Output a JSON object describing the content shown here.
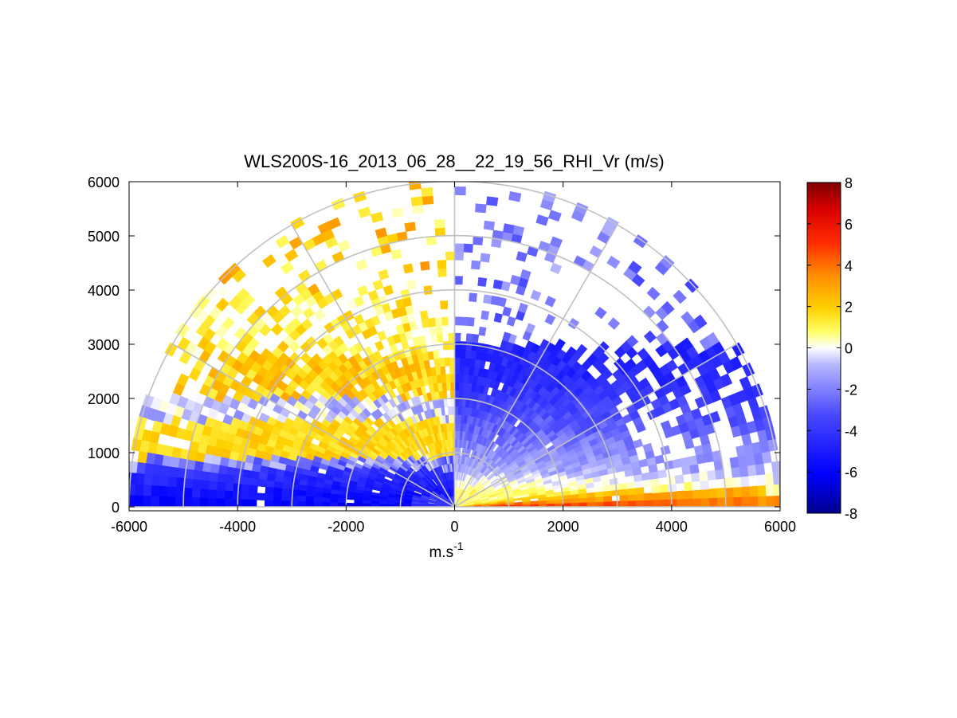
{
  "chart_data": {
    "type": "heatmap",
    "subtype": "polar-rhi-scan",
    "title": "WLS200S-16_2013_06_28__22_19_56_RHI_Vr (m/s)",
    "xlabel": "m.s",
    "xlabel_superscript": "-1",
    "ylabel": "",
    "xlim": [
      -6000,
      6000
    ],
    "ylim": [
      0,
      6000
    ],
    "xticks": [
      -6000,
      -4000,
      -2000,
      0,
      2000,
      4000,
      6000
    ],
    "yticks": [
      0,
      1000,
      2000,
      3000,
      4000,
      5000,
      6000
    ],
    "polar_grid": {
      "range_rings": [
        1000,
        2000,
        3000,
        4000,
        5000,
        6000
      ],
      "spokes_deg": [
        0,
        30,
        60,
        90,
        120,
        150,
        180
      ]
    },
    "colorbar": {
      "range": [
        -8,
        8
      ],
      "ticks": [
        8,
        6,
        4,
        2,
        0,
        -2,
        -4,
        -6,
        -8
      ],
      "colormap": "blue-white-red (diverging)"
    },
    "grid": true,
    "description_regions": [
      {
        "region": "low-elevation right (0-15 deg), near surface",
        "value_range": [
          2,
          6
        ],
        "color": "red/orange"
      },
      {
        "region": "low-elevation left (165-180 deg), near surface",
        "value_range": [
          -7,
          -4
        ],
        "color": "blue"
      },
      {
        "region": "left mid-layer 1000-2500 m",
        "value_range": [
          0.5,
          3
        ],
        "color": "yellow/orange"
      },
      {
        "region": "right mid-layer 500-3000 m",
        "value_range": [
          -5,
          -1
        ],
        "color": "blue"
      }
    ]
  }
}
